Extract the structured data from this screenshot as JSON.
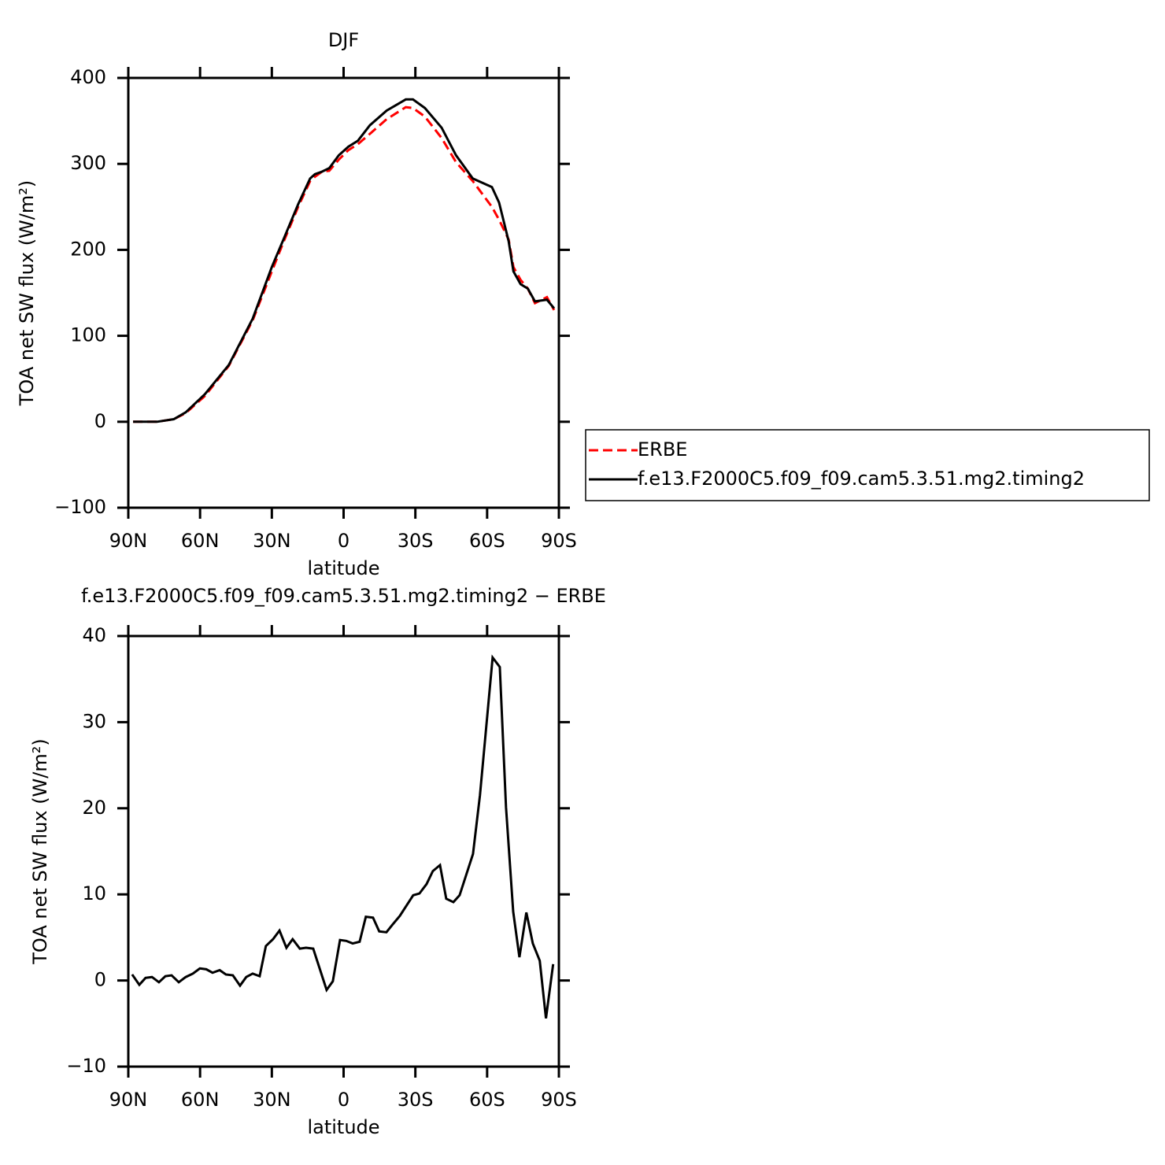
{
  "chart_data": [
    {
      "type": "line",
      "title": "DJF",
      "x_label": "latitude",
      "y_label": "TOA net SW flux (W/m²)",
      "x": [
        88,
        78,
        71,
        66,
        58,
        48,
        38,
        30,
        25,
        19,
        14,
        12,
        9,
        6,
        2,
        -2,
        -6,
        -11,
        -18,
        -26,
        -29,
        -34,
        -41,
        -47,
        -54,
        -62,
        -65,
        -69,
        -71,
        -74,
        -77,
        -80,
        -85,
        -88
      ],
      "series": [
        {
          "name": "ERBE",
          "color": "#ff0000",
          "style": "dashed",
          "values": [
            0,
            0,
            3,
            10,
            30,
            65,
            118,
            175,
            210,
            250,
            280,
            285,
            291,
            292,
            305,
            316,
            323,
            335,
            352,
            366,
            365,
            355,
            330,
            302,
            280,
            250,
            235,
            212,
            180,
            165,
            155,
            138,
            145,
            130
          ]
        },
        {
          "name": "f.e13.F2000C5.f09_f09.cam5.3.51.mg2.timing2",
          "color": "#000000",
          "style": "solid",
          "values": [
            0,
            0,
            3,
            11,
            32,
            66,
            120,
            180,
            213,
            253,
            283,
            288,
            291,
            295,
            310,
            320,
            327,
            345,
            362,
            375,
            375,
            365,
            342,
            310,
            283,
            273,
            255,
            210,
            175,
            160,
            155,
            140,
            142,
            132
          ]
        }
      ],
      "xlim": [
        90,
        -90
      ],
      "xticks": [
        {
          "value": 90,
          "label": "90N"
        },
        {
          "value": 60,
          "label": "60N"
        },
        {
          "value": 30,
          "label": "30N"
        },
        0,
        {
          "value": -30,
          "label": "30S"
        },
        {
          "value": -60,
          "label": "60S"
        },
        {
          "value": -90,
          "label": "90S"
        }
      ],
      "ylim": [
        -100,
        400
      ],
      "yticks": [
        {
          "value": -100,
          "label": "−100"
        },
        0,
        100,
        200,
        300,
        400
      ],
      "legend": "right"
    },
    {
      "type": "line",
      "title": "f.e13.F2000C5.f09_f09.cam5.3.51.mg2.timing2 − ERBE",
      "x_label": "latitude",
      "y_label": "TOA net SW flux (W/m²)",
      "x": [
        88.4,
        85.4,
        82.8,
        80.1,
        77.2,
        74.5,
        71.9,
        68.9,
        66.0,
        63.0,
        60.1,
        57.4,
        54.8,
        51.8,
        49.2,
        46.3,
        43.3,
        40.7,
        38.0,
        35.1,
        32.5,
        29.5,
        26.8,
        23.9,
        21.3,
        18.3,
        15.7,
        12.7,
        7.1,
        4.5,
        1.5,
        -1.1,
        -3.8,
        -6.7,
        -9.3,
        -12.3,
        -14.9,
        -17.9,
        -20.5,
        -23.5,
        -29.1,
        -31.7,
        -34.7,
        -37.3,
        -40.3,
        -42.9,
        -45.9,
        -48.5,
        -54.1,
        -57.0,
        -62.3,
        -65.3,
        -67.9,
        -70.9,
        -73.5,
        -76.4,
        -79.1,
        -82.0,
        -84.6,
        -87.6
      ],
      "values": [
        0.7,
        -0.5,
        0.3,
        0.4,
        -0.2,
        0.5,
        0.6,
        -0.2,
        0.4,
        0.8,
        1.4,
        1.3,
        0.9,
        1.2,
        0.7,
        0.6,
        -0.6,
        0.4,
        0.8,
        0.5,
        4.0,
        4.8,
        5.8,
        3.8,
        4.8,
        3.7,
        3.8,
        3.7,
        -1.1,
        -0.1,
        4.7,
        4.6,
        4.3,
        4.5,
        7.4,
        7.3,
        5.7,
        5.6,
        6.5,
        7.5,
        9.9,
        10.1,
        11.2,
        12.7,
        13.4,
        9.5,
        9.1,
        9.9,
        14.7,
        21.5,
        37.5,
        36.4,
        20.1,
        8.0,
        2.7,
        7.9,
        4.3,
        2.3,
        -4.4,
        1.9
      ],
      "color": "#000000",
      "style": "solid",
      "xlim": [
        90,
        -90
      ],
      "xticks": [
        {
          "value": 90,
          "label": "90N"
        },
        {
          "value": 60,
          "label": "60N"
        },
        {
          "value": 30,
          "label": "30N"
        },
        0,
        {
          "value": -30,
          "label": "30S"
        },
        {
          "value": -60,
          "label": "60S"
        },
        {
          "value": -90,
          "label": "90S"
        }
      ],
      "ylim": [
        -10,
        40
      ],
      "yticks": [
        {
          "value": -10,
          "label": "−10"
        },
        0,
        10,
        20,
        30,
        40
      ]
    }
  ]
}
